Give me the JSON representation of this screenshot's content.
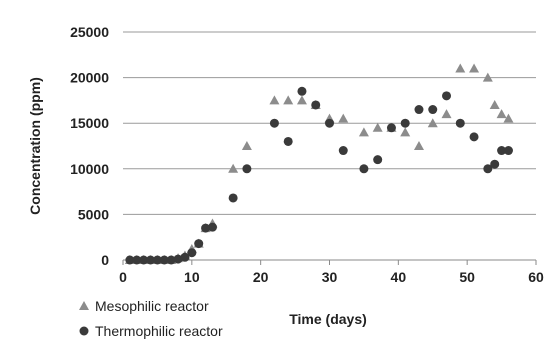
{
  "chart_data": {
    "type": "scatter",
    "title": "",
    "xlabel": "Time (days)",
    "ylabel": "Concentration (ppm)",
    "xlim": [
      0,
      60
    ],
    "ylim": [
      0,
      25000
    ],
    "x_ticks": [
      0,
      10,
      20,
      30,
      40,
      50,
      60
    ],
    "y_ticks": [
      0,
      5000,
      10000,
      15000,
      20000,
      25000
    ],
    "x_tick_labels": [
      "0",
      "10",
      "20",
      "30",
      "40",
      "50",
      "60"
    ],
    "y_tick_labels": [
      "0",
      "5000",
      "10000",
      "15000",
      "20000",
      "25000"
    ],
    "grid": "horizontal",
    "legend_position": "bottom-left",
    "series": [
      {
        "name": "Mesophilic reactor",
        "marker": "triangle",
        "color": "#8c8c8c",
        "x": [
          1,
          2,
          3,
          4,
          5,
          6,
          7,
          8,
          9,
          10,
          11,
          12,
          13,
          16,
          18,
          22,
          24,
          26,
          28,
          30,
          32,
          35,
          37,
          39,
          41,
          43,
          45,
          47,
          49,
          51,
          53,
          54,
          55,
          56
        ],
        "y": [
          0,
          0,
          0,
          0,
          0,
          0,
          0,
          200,
          500,
          1200,
          1800,
          3500,
          4000,
          10000,
          12500,
          17500,
          17500,
          17500,
          17000,
          15500,
          15500,
          14000,
          14500,
          14500,
          14000,
          12500,
          15000,
          16000,
          21000,
          21000,
          20000,
          17000,
          16000,
          15500
        ]
      },
      {
        "name": "Thermophilic reactor",
        "marker": "circle",
        "color": "#3a3a3a",
        "x": [
          1,
          2,
          3,
          4,
          5,
          6,
          7,
          8,
          9,
          10,
          11,
          12,
          13,
          16,
          18,
          22,
          24,
          26,
          28,
          30,
          32,
          35,
          37,
          39,
          41,
          43,
          45,
          47,
          49,
          51,
          53,
          54,
          55,
          56
        ],
        "y": [
          0,
          0,
          0,
          0,
          0,
          0,
          0,
          100,
          300,
          800,
          1800,
          3500,
          3600,
          6800,
          10000,
          15000,
          13000,
          18500,
          17000,
          15000,
          12000,
          10000,
          11000,
          14500,
          15000,
          16500,
          16500,
          18000,
          15000,
          13500,
          10000,
          10500,
          12000,
          12000
        ]
      }
    ]
  }
}
